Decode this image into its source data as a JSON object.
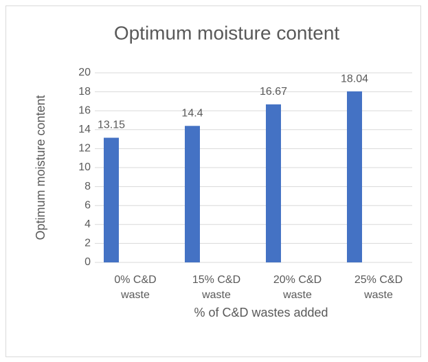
{
  "chart_data": {
    "type": "bar",
    "title": "Optimum moisture content",
    "categories": [
      "0% C&D waste",
      "15% C&D waste",
      "20% C&D waste",
      "25% C&D waste"
    ],
    "values": [
      13.15,
      14.4,
      16.67,
      18.04
    ],
    "color": "#4472c4",
    "y_label": "Optimum moisture content",
    "x_label": "% of C&D wastes added",
    "ylim": [
      0,
      20
    ],
    "yticks": [
      0,
      2,
      4,
      6,
      8,
      10,
      12,
      14,
      16,
      18,
      20
    ],
    "grid": true
  }
}
